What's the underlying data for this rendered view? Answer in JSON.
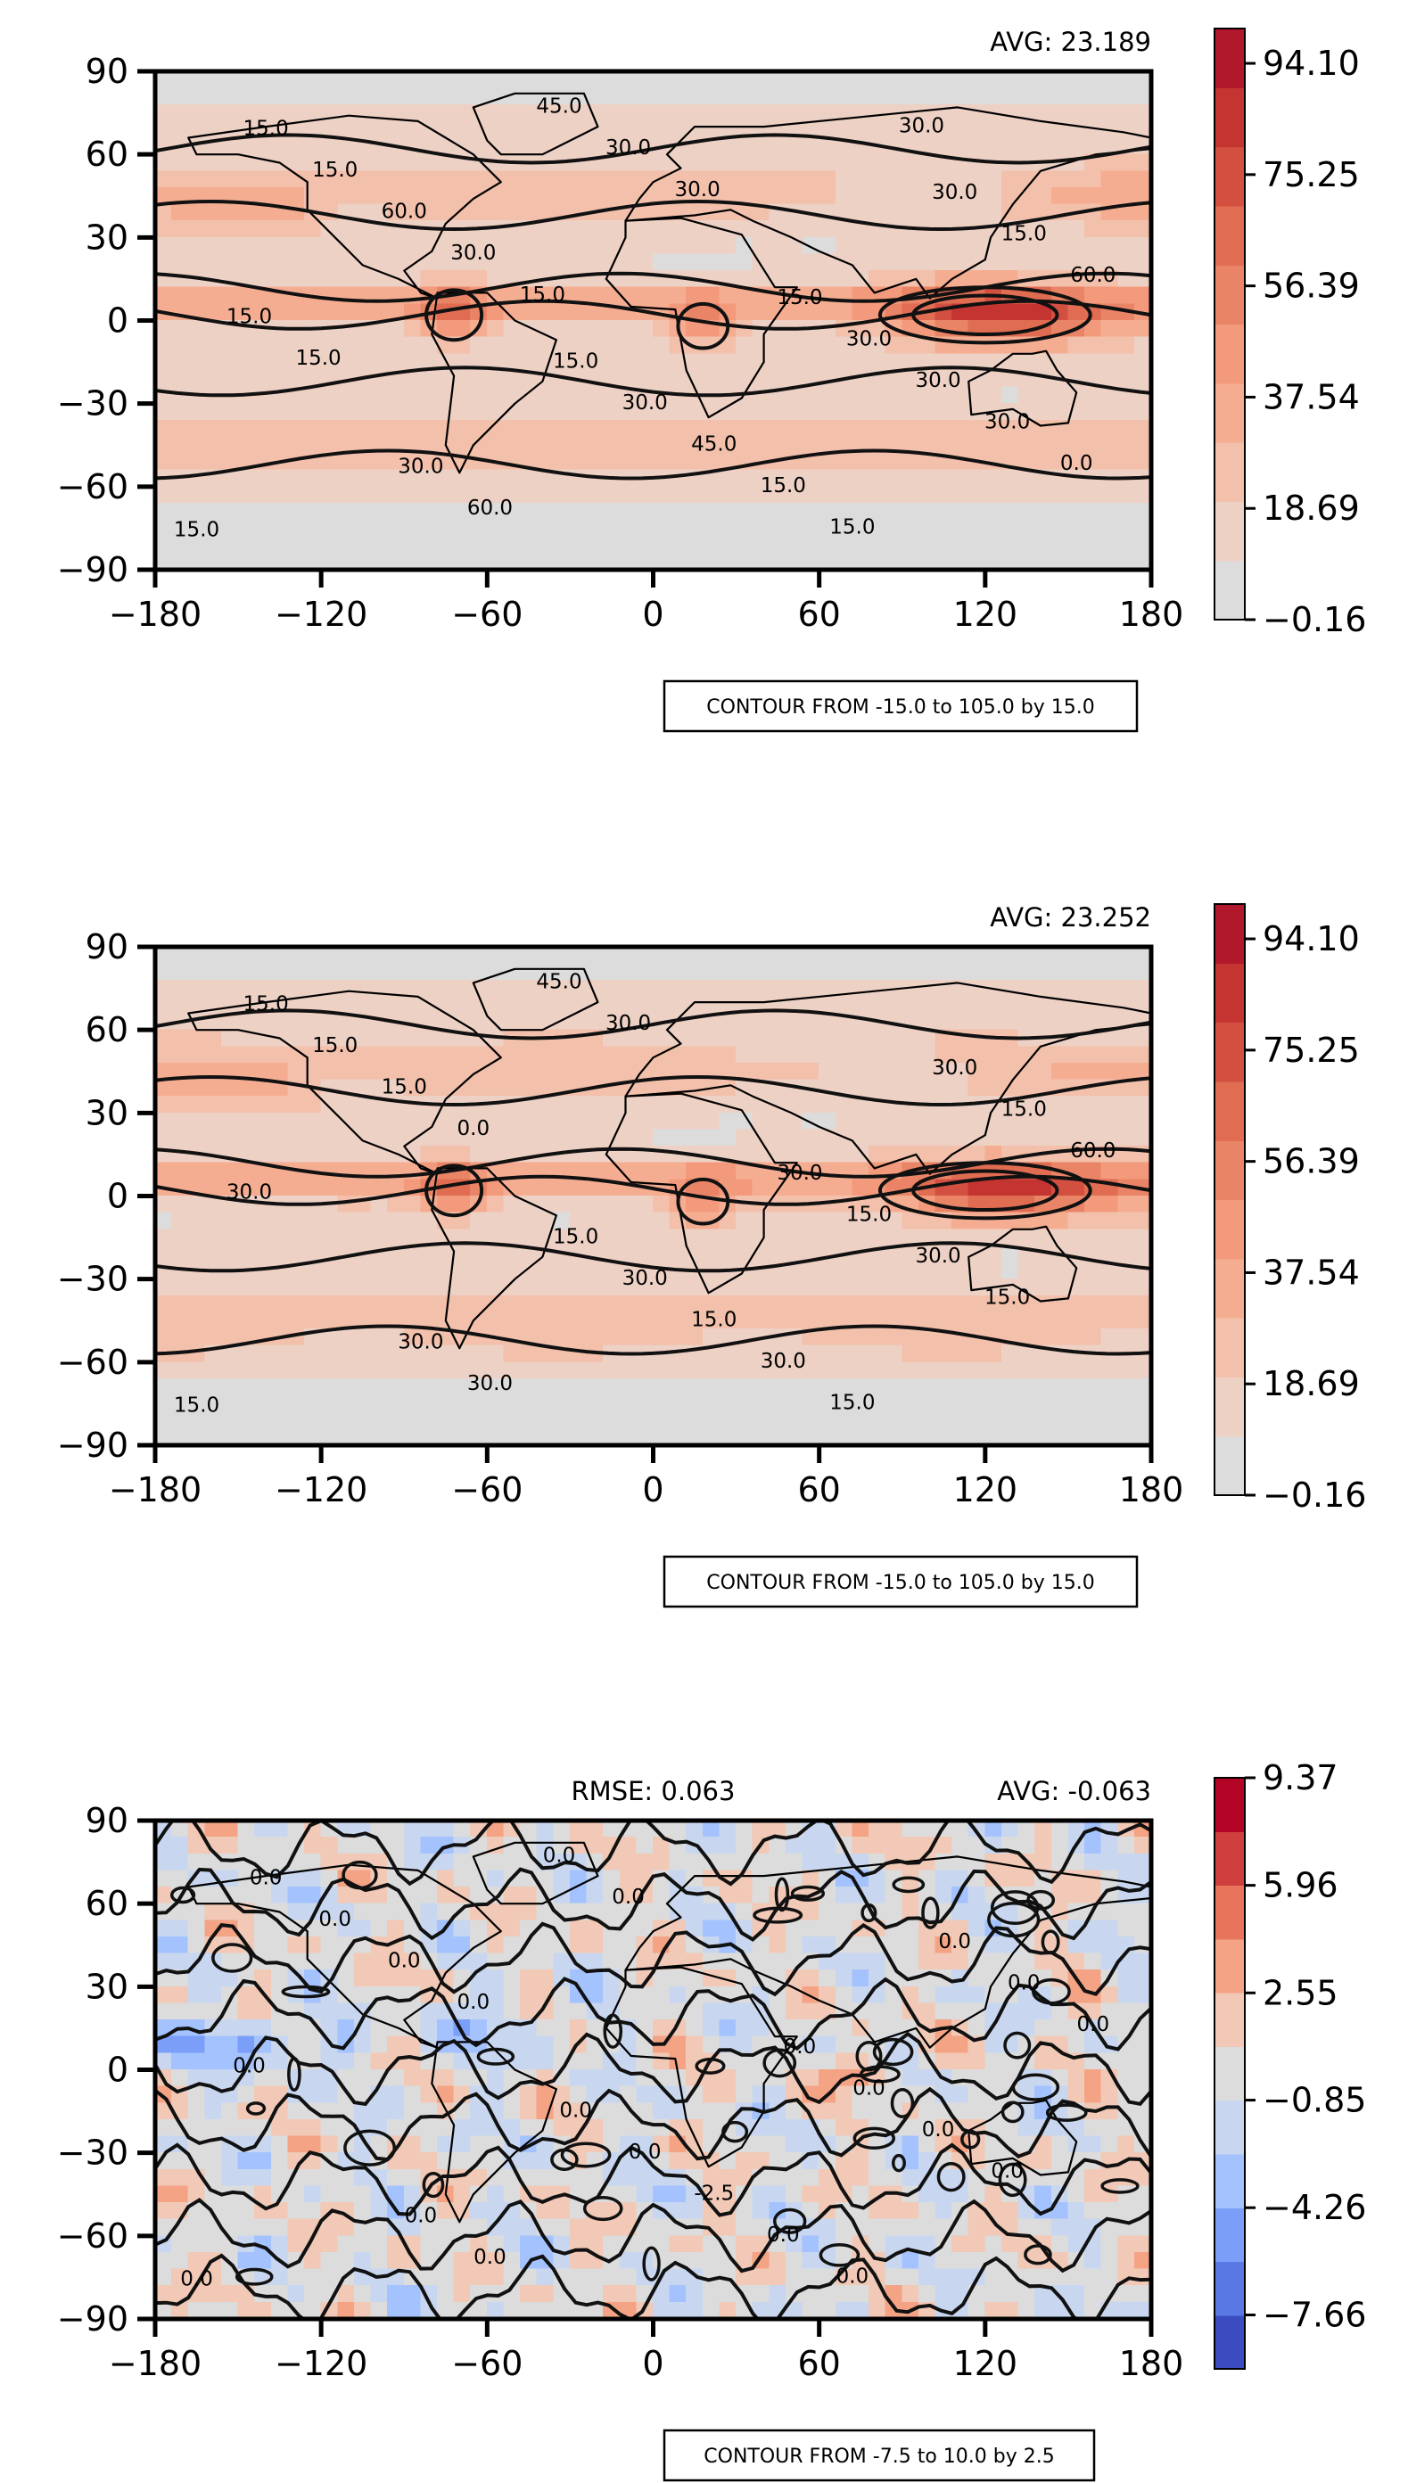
{
  "chart_data": [
    {
      "type": "heatmap",
      "panel": "top",
      "avg_label": "AVG: 23.189",
      "rmse_label": "",
      "xlim": [
        -180,
        180
      ],
      "ylim": [
        -90,
        90
      ],
      "x_ticks": [
        "−180",
        "−120",
        "−60",
        "0",
        "60",
        "120",
        "180"
      ],
      "y_ticks": [
        "90",
        "60",
        "30",
        "0",
        "−30",
        "−60",
        "−90"
      ],
      "colorbar": {
        "min": -0.16,
        "max": 100.0,
        "ticks": [
          "−0.16",
          "18.69",
          "37.54",
          "56.39",
          "75.25",
          "94.10"
        ],
        "tick_values": [
          -0.16,
          18.69,
          37.54,
          56.39,
          75.25,
          94.1
        ],
        "colors": [
          "#dddcdc",
          "#eed1c5",
          "#f2c0ab",
          "#f5ad92",
          "#f29a7b",
          "#ea8466",
          "#e06c52",
          "#d34f40",
          "#c43532",
          "#b2182b"
        ]
      },
      "contour_labels": [
        "15.0",
        "15.0",
        "30.0",
        "30.0",
        "15.0",
        "15.0",
        "30.0",
        "15.0",
        "60.0",
        "30.0",
        "15.0",
        "45.0",
        "60.0",
        "45.0",
        "30.0",
        "60.0",
        "15.0",
        "15.0",
        "30.0",
        "30.0",
        "30.0",
        "15.0",
        "15.0",
        "30.0",
        "0.0",
        "15.0",
        "30.0"
      ],
      "note": "CONTOUR FROM -15.0 to 105.0 by 15.0"
    },
    {
      "type": "heatmap",
      "panel": "middle",
      "avg_label": "AVG: 23.252",
      "rmse_label": "",
      "xlim": [
        -180,
        180
      ],
      "ylim": [
        -90,
        90
      ],
      "x_ticks": [
        "−180",
        "−120",
        "−60",
        "0",
        "60",
        "120",
        "180"
      ],
      "y_ticks": [
        "90",
        "60",
        "30",
        "0",
        "−30",
        "−60",
        "−90"
      ],
      "colorbar": {
        "min": -0.16,
        "max": 100.0,
        "ticks": [
          "−0.16",
          "18.69",
          "37.54",
          "56.39",
          "75.25",
          "94.10"
        ],
        "tick_values": [
          -0.16,
          18.69,
          37.54,
          56.39,
          75.25,
          94.1
        ],
        "colors": [
          "#dddcdc",
          "#eed1c5",
          "#f2c0ab",
          "#f5ad92",
          "#f29a7b",
          "#ea8466",
          "#e06c52",
          "#d34f40",
          "#c43532",
          "#b2182b"
        ]
      },
      "contour_labels": [
        "15.0",
        "15.0",
        "30.0",
        "30.0",
        "30.0",
        "15.0",
        "30.0",
        "15.0",
        "30.0",
        "15.0",
        "15.0",
        "15.0",
        "60.0",
        "45.0",
        "30.0",
        "15.0",
        "30.0",
        "30.0",
        "30.0",
        "15.0",
        "0.0",
        "15.0"
      ],
      "note": "CONTOUR FROM -15.0 to 105.0 by 15.0"
    },
    {
      "type": "heatmap",
      "panel": "bottom",
      "avg_label": "AVG: -0.063",
      "rmse_label": "RMSE: 0.063",
      "xlim": [
        -180,
        180
      ],
      "ylim": [
        -90,
        90
      ],
      "x_ticks": [
        "−180",
        "−120",
        "−60",
        "0",
        "60",
        "120",
        "180"
      ],
      "y_ticks": [
        "90",
        "60",
        "30",
        "0",
        "−30",
        "−60",
        "−90"
      ],
      "colorbar": {
        "min": -9.37,
        "max": 9.37,
        "ticks": [
          "−7.66",
          "−4.26",
          "−0.85",
          "2.55",
          "5.96",
          "9.37"
        ],
        "tick_values": [
          -7.66,
          -4.26,
          -0.85,
          2.55,
          5.96,
          9.37
        ],
        "colors": [
          "#3b4cc0",
          "#5a78e4",
          "#7b9ff9",
          "#a3c2fe",
          "#c8d7ef",
          "#dcdcdc",
          "#f1c9b6",
          "#f4a385",
          "#e7745b",
          "#cf3f3e",
          "#b40426"
        ]
      },
      "contour_labels": [
        "0.0",
        "0.0",
        "0.0",
        "0.0",
        "0.0",
        "0.0",
        "0.0",
        "0.0",
        "0.0",
        "0.0",
        "0.0",
        "-2.5",
        "0.0",
        "0.0",
        "0.0",
        "0.0",
        "0.0",
        "0.0",
        "0.0",
        "0.0",
        "0.0",
        "0.0"
      ],
      "note": "CONTOUR FROM -7.5 to 10.0 by 2.5"
    }
  ]
}
